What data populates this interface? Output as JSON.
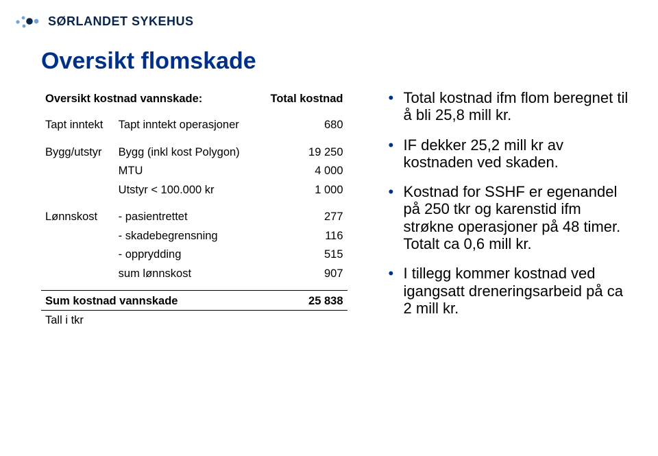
{
  "brand": {
    "name": "SØRLANDET SYKEHUS",
    "logo_colors": {
      "dot_light": "#6fa4d8",
      "dot_dark": "#0a244a"
    }
  },
  "title": "Oversikt flomskade",
  "table": {
    "header": {
      "label": "Oversikt kostnad vannskade:",
      "total_col": "Total kostnad"
    },
    "rows": [
      {
        "group": "Tapt inntekt",
        "item": "Tapt inntekt operasjoner",
        "value": "680"
      },
      {
        "group": "Bygg/utstyr",
        "item": "Bygg (inkl kost Polygon)",
        "value": "19 250",
        "gap_before": true
      },
      {
        "group": "",
        "item": "MTU",
        "value": "4 000"
      },
      {
        "group": "",
        "item": "Utstyr < 100.000 kr",
        "value": "1 000"
      },
      {
        "group": "Lønnskost",
        "item": "- pasientrettet",
        "value": "277",
        "gap_before": true
      },
      {
        "group": "",
        "item": "- skadebegrensning",
        "value": "116"
      },
      {
        "group": "",
        "item": "- opprydding",
        "value": "515"
      },
      {
        "group": "",
        "item": "sum lønnskost",
        "value": "907"
      }
    ],
    "total": {
      "label": "Sum kostnad vannskade",
      "value": "25 838"
    },
    "footnote": "Tall i tkr"
  },
  "bullets": [
    "Total kostnad ifm flom beregnet til å bli 25,8 mill kr.",
    "IF dekker 25,2 mill kr av kostnaden ved skaden.",
    "Kostnad for SSHF er egenandel på 250 tkr og karenstid ifm strøkne operasjoner på 48 timer. Totalt ca 0,6 mill kr.",
    "I tillegg kommer kostnad ved igangsatt dreneringsarbeid på ca 2 mill kr."
  ],
  "colors": {
    "title": "#003087",
    "bullet": "#003087",
    "text": "#000000",
    "background": "#ffffff"
  },
  "typography": {
    "title_size_pt": 26,
    "body_size_pt": 12,
    "bullet_size_pt": 17,
    "font_family": "Arial"
  }
}
